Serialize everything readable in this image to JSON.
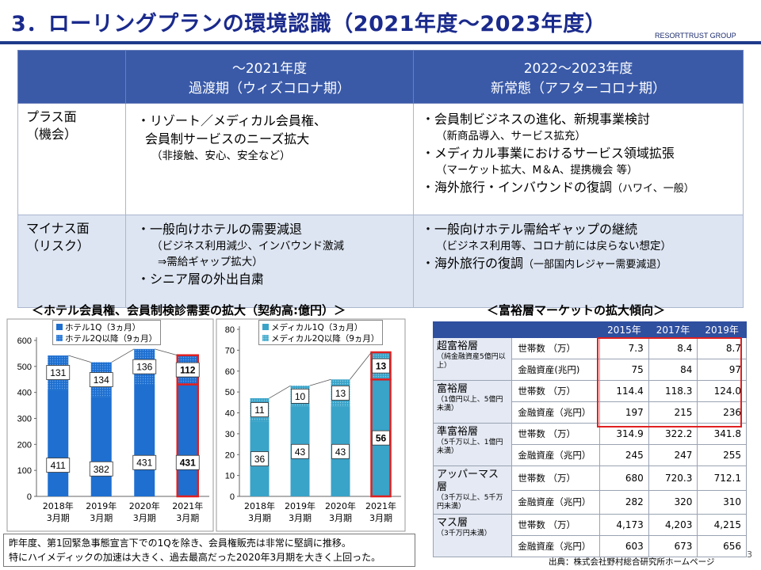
{
  "header": {
    "title": "3．ローリングプランの環境認識（2021年度～2023年度）",
    "brand": "RESORTTRUST GROUP"
  },
  "main_table": {
    "columns": [
      {
        "line1": "～2021年度",
        "line2": "過渡期（ウィズコロナ期）"
      },
      {
        "line1": "2022～2023年度",
        "line2": "新常態（アフターコロナ期）"
      }
    ],
    "plus": {
      "label1": "プラス面",
      "label2": "（機会）",
      "col1": [
        "・リゾート／メディカル会員権、",
        "会員制サービスのニーズ拡大",
        "（非接触、安心、安全など）"
      ],
      "col2": [
        "・会員制ビジネスの進化、新規事業検討",
        "（新商品導入、サービス拡充）",
        "・メディカル事業におけるサービス領域拡張",
        "（マーケット拡大、M＆A、提携機会 等）",
        "・海外旅行・インバウンドの復調",
        "（ハワイ、一般）"
      ]
    },
    "minus": {
      "label1": "マイナス面",
      "label2": "（リスク）",
      "col1": [
        "・一般向けホテルの需要減退",
        "（ビジネス利用減少、インバウンド激減",
        "⇒需給ギャップ拡大）",
        "・シニア層の外出自粛"
      ],
      "col2": [
        "・一般向けホテル需給ギャップの継続",
        "（ビジネス利用等、コロナ前には戻らない想定）",
        "・海外旅行の復調",
        "（一部国内レジャー需要減退）"
      ]
    }
  },
  "left_section_title": "＜ホテル会員権、会員制検診需要の拡大（契約高:億円）＞",
  "right_section_title": "＜富裕層マーケットの拡大傾向＞",
  "chart_data": [
    {
      "type": "bar",
      "stacked": true,
      "categories": [
        "2018年\n3月期",
        "2019年\n3月期",
        "2020年\n3月期",
        "2021年\n3月期"
      ],
      "category_lines": [
        [
          "2018年",
          "3月期"
        ],
        [
          "2019年",
          "3月期"
        ],
        [
          "2020年",
          "3月期"
        ],
        [
          "2021年",
          "3月期"
        ]
      ],
      "series": [
        {
          "name": "ホテル1Q（3ヵ月）",
          "values": [
            411,
            382,
            431,
            431
          ]
        },
        {
          "name": "ホテル2Q以降（9ヵ月）",
          "values": [
            131,
            134,
            136,
            112
          ]
        }
      ],
      "ylim": [
        0,
        600
      ],
      "yticks": [
        0,
        100,
        200,
        300,
        400,
        500,
        600
      ],
      "highlight_last": true,
      "colors": {
        "q1": "#1e6fd0",
        "rest": "#1e6fd0",
        "highlight": "#e02020"
      }
    },
    {
      "type": "bar",
      "stacked": true,
      "categories": [
        "2018年\n3月期",
        "2019年\n3月期",
        "2020年\n3月期",
        "2021年\n3月期"
      ],
      "category_lines": [
        [
          "2018年",
          "3月期"
        ],
        [
          "2019年",
          "3月期"
        ],
        [
          "2020年",
          "3月期"
        ],
        [
          "2021年",
          "3月期"
        ]
      ],
      "series": [
        {
          "name": "メディカル1Q（3ヵ月）",
          "values": [
            36,
            43,
            43,
            56
          ]
        },
        {
          "name": "メディカル2Q以降（9ヵ月）",
          "values": [
            11,
            10,
            13,
            13
          ]
        }
      ],
      "ylim": [
        0,
        80
      ],
      "yticks": [
        0,
        10,
        20,
        30,
        40,
        50,
        60,
        70,
        80
      ],
      "highlight_last": true,
      "colors": {
        "q1": "#3aa3c8",
        "rest": "#3aa3c8",
        "highlight": "#e02020"
      }
    }
  ],
  "wealth_table": {
    "years": [
      "2015年",
      "2017年",
      "2019年"
    ],
    "rows": [
      {
        "cat": "超富裕層",
        "sub": "（純金融資産5億円以上）",
        "households_label": "世帯数 （万）",
        "assets_label": "金融資産(兆円)",
        "households": [
          "7.3",
          "8.4",
          "8.7"
        ],
        "assets": [
          "75",
          "84",
          "97"
        ]
      },
      {
        "cat": "富裕層",
        "sub": "（1億円以上、5億円未満）",
        "households_label": "世帯数 （万）",
        "assets_label": "金融資産（兆円）",
        "households": [
          "114.4",
          "118.3",
          "124.0"
        ],
        "assets": [
          "197",
          "215",
          "236"
        ]
      },
      {
        "cat": "準富裕層",
        "sub": "（5千万以上、1億円未満）",
        "households_label": "世帯数 （万）",
        "assets_label": "金融資産（兆円）",
        "households": [
          "314.9",
          "322.2",
          "341.8"
        ],
        "assets": [
          "245",
          "247",
          "255"
        ]
      },
      {
        "cat": "アッパーマス層",
        "sub": "（3千万以上、5千万円未満）",
        "households_label": "世帯数 （万）",
        "assets_label": "金融資産（兆円）",
        "households": [
          "680",
          "720.3",
          "712.1"
        ],
        "assets": [
          "282",
          "320",
          "310"
        ]
      },
      {
        "cat": "マス層",
        "sub": "（3千万円未満）",
        "households_label": "世帯数 （万）",
        "assets_label": "金融資産（兆円）",
        "households": [
          "4,173",
          "4,203",
          "4,215"
        ],
        "assets": [
          "603",
          "673",
          "656"
        ]
      }
    ]
  },
  "note": {
    "line1": "昨年度、第1回緊急事態宣言下での1Qを除き、会員権販売は非常に堅調に推移。",
    "line2": "特にハイメディックの加速は大きく、過去最高だった2020年3月期を大きく上回った。"
  },
  "source": "出典：株式会社野村総合研究所ホームページ",
  "page_number": "3"
}
